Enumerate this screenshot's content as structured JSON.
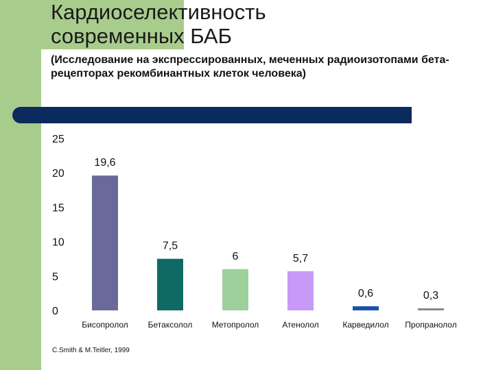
{
  "slide": {
    "title_line1": "Кардиоселективность",
    "title_line2": "современных  БАБ",
    "subtitle": "(Исследование на экспрессированных, меченных радиоизотопами бета-рецепторах рекомбинантных клеток человека)",
    "source": "C.Smith  & M.Teitler, 1999"
  },
  "chart_data": {
    "type": "bar",
    "title": "",
    "xlabel": "",
    "ylabel": "",
    "ylim": [
      0,
      25
    ],
    "yticks": [
      "0",
      "5",
      "10",
      "15",
      "20",
      "25"
    ],
    "categories": [
      "Бисопролол",
      "Бетаксолол",
      "Метопролол",
      "Атенолол",
      "Карведилол",
      "Пропранолол"
    ],
    "values": [
      19.6,
      7.5,
      6,
      5.7,
      0.6,
      0.3
    ],
    "labels": [
      "19,6",
      "7,5",
      "6",
      "5,7",
      "0,6",
      "0,3"
    ],
    "colors": [
      "#6a6a9a",
      "#0f6a66",
      "#9dd09a",
      "#c79af8",
      "#1a52a8",
      "#888888"
    ]
  }
}
